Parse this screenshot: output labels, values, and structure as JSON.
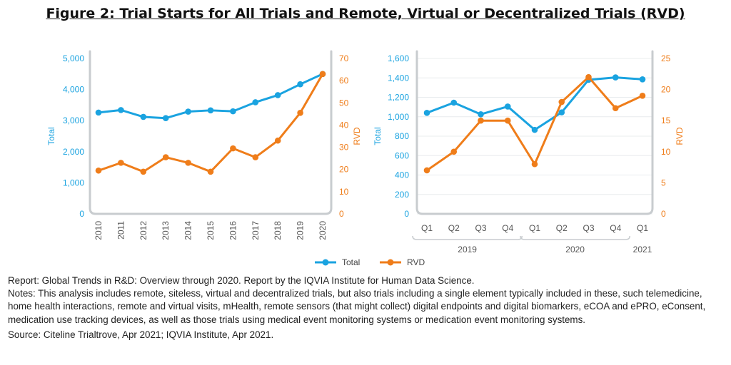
{
  "title": "Figure 2: Trial Starts for All Trials and Remote, Virtual or Decentralized Trials (RVD)",
  "colors": {
    "total": "#1aa3e0",
    "rvd": "#ef7d1a",
    "axis": "#c8cccf",
    "grid": "#e9ecee"
  },
  "legend": [
    {
      "key": "total",
      "label": "Total"
    },
    {
      "key": "rvd",
      "label": "RVD"
    }
  ],
  "chart_data": [
    {
      "type": "line",
      "x": [
        "2010",
        "2011",
        "2012",
        "2013",
        "2014",
        "2015",
        "2016",
        "2017",
        "2018",
        "2019",
        "2020"
      ],
      "series": [
        {
          "name": "Total",
          "axis": "left",
          "values": [
            3260,
            3340,
            3120,
            3080,
            3290,
            3330,
            3300,
            3590,
            3820,
            4170,
            4500
          ]
        },
        {
          "name": "RVD",
          "axis": "right",
          "values": [
            19.5,
            23,
            19,
            25.5,
            23,
            19,
            29.5,
            25.5,
            33,
            45.5,
            63
          ]
        }
      ],
      "ylabel": "Total",
      "y2label": "RVD",
      "ylim": [
        0,
        5000
      ],
      "y2lim": [
        0,
        70
      ],
      "y_ticks": [
        "0",
        "1,000",
        "2,000",
        "3,000",
        "4,000",
        "5,000"
      ],
      "y2_ticks": [
        "0",
        "10",
        "20",
        "30",
        "40",
        "50",
        "60",
        "70"
      ],
      "grid": false,
      "legend": "bottom"
    },
    {
      "type": "line",
      "x": [
        "Q1",
        "Q2",
        "Q3",
        "Q4",
        "Q1",
        "Q2",
        "Q3",
        "Q4",
        "Q1"
      ],
      "year_groups": [
        {
          "label": "2019",
          "from": 0,
          "to": 3
        },
        {
          "label": "2020",
          "from": 4,
          "to": 7
        },
        {
          "label": "2021",
          "from": 8,
          "to": 8
        }
      ],
      "series": [
        {
          "name": "Total",
          "axis": "left",
          "values": [
            1040,
            1145,
            1025,
            1105,
            865,
            1045,
            1380,
            1405,
            1385
          ]
        },
        {
          "name": "RVD",
          "axis": "right",
          "values": [
            7,
            10,
            15,
            15,
            8,
            18,
            22,
            17,
            19
          ]
        }
      ],
      "ylabel": "Total",
      "y2label": "RVD",
      "ylim": [
        0,
        1600
      ],
      "y2lim": [
        0,
        25
      ],
      "y_ticks": [
        "0",
        "200",
        "400",
        "600",
        "800",
        "1,000",
        "1,200",
        "1,400",
        "1,600"
      ],
      "y2_ticks": [
        "0",
        "5",
        "10",
        "15",
        "20",
        "25"
      ],
      "grid": true,
      "legend": "bottom"
    }
  ],
  "notes": {
    "report": "Report: Global Trends in R&D: Overview through 2020. Report by the IQVIA Institute for Human Data Science.",
    "body": "Notes: This analysis includes remote, siteless, virtual and decentralized trials, but also trials including a single element typically included in these, such telemedicine, home health interactions, remote and virtual visits, mHealth, remote sensors (that might collect) digital endpoints and digital biomarkers, eCOA and ePRO, eConsent, medication use tracking devices, as well as those trials using medical event monitoring systems or medication event monitoring systems.",
    "source": "Source: Citeline Trialtrove, Apr 2021; IQVIA Institute, Apr 2021."
  }
}
